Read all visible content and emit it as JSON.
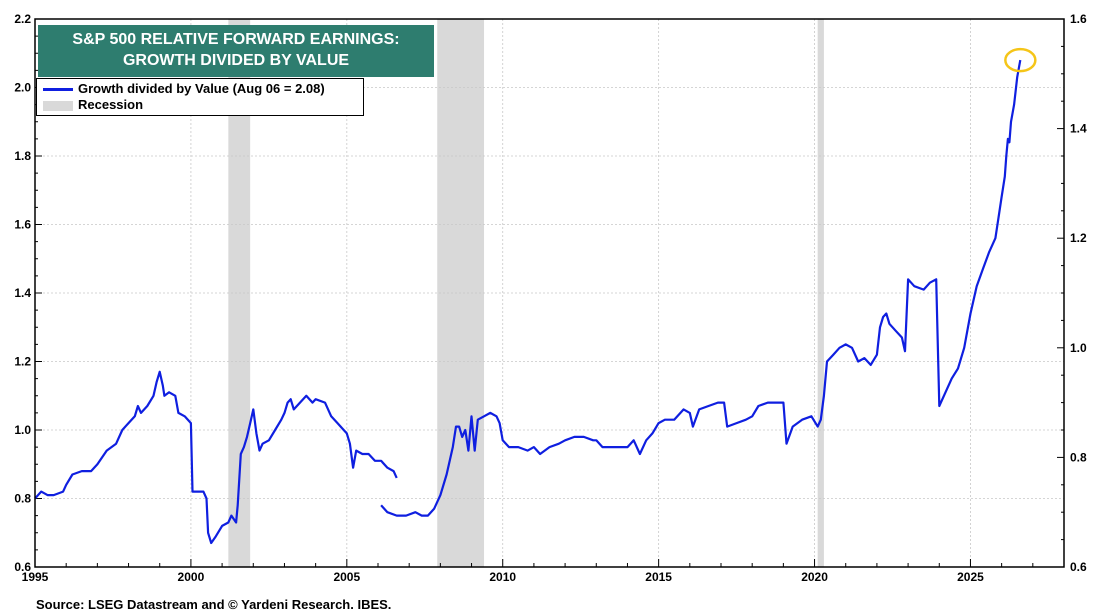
{
  "colors": {
    "series": "#0f1fe0",
    "recession": "#d9d9d9",
    "title_bg": "#2e7d6f",
    "highlight": "#f5c518",
    "grid": "#c8c8c8"
  },
  "chart_data": {
    "type": "line",
    "title": "S&P 500 RELATIVE FORWARD EARNINGS:",
    "subtitle": "GROWTH DIVIDED BY VALUE",
    "xlabel": "",
    "ylabel": "",
    "xlim": [
      1995,
      2028
    ],
    "ylim": [
      0.6,
      2.2
    ],
    "y2lim": [
      0.6,
      1.6
    ],
    "x_ticks": [
      "1995",
      "2000",
      "2005",
      "2010",
      "2015",
      "2020",
      "2025"
    ],
    "y_ticks": [
      "0.6",
      "0.8",
      "1.0",
      "1.2",
      "1.4",
      "1.6",
      "1.8",
      "2.0",
      "2.2"
    ],
    "y2_ticks": [
      "0.6",
      "0.8",
      "1.0",
      "1.2",
      "1.4",
      "1.6"
    ],
    "grid": true,
    "legend_position": "top-left",
    "legend": [
      "Growth divided by Value (Aug 06 = 2.08)",
      "Recession"
    ],
    "recessions": [
      [
        2001.2,
        2001.9
      ],
      [
        2007.9,
        2009.4
      ],
      [
        2020.1,
        2020.3
      ]
    ],
    "series": [
      {
        "name": "Growth divided by Value (Aug 06 = 2.08)",
        "segments": [
          [
            [
              1995.0,
              0.8
            ],
            [
              1995.2,
              0.82
            ],
            [
              1995.4,
              0.81
            ],
            [
              1995.6,
              0.81
            ],
            [
              1995.9,
              0.82
            ],
            [
              1996.0,
              0.84
            ],
            [
              1996.2,
              0.87
            ],
            [
              1996.5,
              0.88
            ],
            [
              1996.8,
              0.88
            ],
            [
              1997.0,
              0.9
            ],
            [
              1997.3,
              0.94
            ],
            [
              1997.6,
              0.96
            ],
            [
              1997.8,
              1.0
            ],
            [
              1998.0,
              1.02
            ],
            [
              1998.2,
              1.04
            ],
            [
              1998.3,
              1.07
            ],
            [
              1998.4,
              1.05
            ],
            [
              1998.6,
              1.07
            ],
            [
              1998.8,
              1.1
            ],
            [
              1998.9,
              1.14
            ],
            [
              1999.0,
              1.17
            ],
            [
              1999.1,
              1.13
            ],
            [
              1999.15,
              1.1
            ],
            [
              1999.3,
              1.11
            ],
            [
              1999.5,
              1.1
            ],
            [
              1999.6,
              1.05
            ],
            [
              1999.8,
              1.04
            ],
            [
              2000.0,
              1.02
            ],
            [
              2000.05,
              0.82
            ],
            [
              2000.2,
              0.82
            ],
            [
              2000.4,
              0.82
            ],
            [
              2000.5,
              0.8
            ],
            [
              2000.55,
              0.7
            ],
            [
              2000.65,
              0.67
            ],
            [
              2000.8,
              0.69
            ],
            [
              2001.0,
              0.72
            ],
            [
              2001.2,
              0.73
            ],
            [
              2001.3,
              0.75
            ],
            [
              2001.45,
              0.73
            ],
            [
              2001.5,
              0.78
            ],
            [
              2001.6,
              0.93
            ],
            [
              2001.7,
              0.95
            ],
            [
              2001.8,
              0.98
            ],
            [
              2001.9,
              1.02
            ],
            [
              2002.0,
              1.06
            ],
            [
              2002.1,
              0.99
            ],
            [
              2002.2,
              0.94
            ],
            [
              2002.3,
              0.96
            ],
            [
              2002.5,
              0.97
            ],
            [
              2002.7,
              1.0
            ],
            [
              2002.9,
              1.03
            ],
            [
              2003.0,
              1.05
            ],
            [
              2003.1,
              1.08
            ],
            [
              2003.2,
              1.09
            ],
            [
              2003.3,
              1.06
            ],
            [
              2003.5,
              1.08
            ],
            [
              2003.7,
              1.1
            ],
            [
              2003.9,
              1.08
            ],
            [
              2004.0,
              1.09
            ],
            [
              2004.3,
              1.08
            ],
            [
              2004.5,
              1.04
            ],
            [
              2004.7,
              1.02
            ],
            [
              2004.9,
              1.0
            ],
            [
              2005.0,
              0.99
            ],
            [
              2005.1,
              0.96
            ],
            [
              2005.2,
              0.89
            ],
            [
              2005.3,
              0.94
            ],
            [
              2005.5,
              0.93
            ],
            [
              2005.7,
              0.93
            ],
            [
              2005.9,
              0.91
            ],
            [
              2006.1,
              0.91
            ],
            [
              2006.3,
              0.89
            ],
            [
              2006.5,
              0.88
            ],
            [
              2006.6,
              0.86
            ]
          ],
          [
            [
              2006.1,
              0.78
            ],
            [
              2006.3,
              0.76
            ],
            [
              2006.6,
              0.75
            ],
            [
              2006.9,
              0.75
            ],
            [
              2007.2,
              0.76
            ],
            [
              2007.4,
              0.75
            ],
            [
              2007.6,
              0.75
            ],
            [
              2007.8,
              0.77
            ],
            [
              2008.0,
              0.81
            ],
            [
              2008.2,
              0.87
            ],
            [
              2008.4,
              0.95
            ],
            [
              2008.5,
              1.01
            ],
            [
              2008.6,
              1.01
            ],
            [
              2008.7,
              0.98
            ],
            [
              2008.8,
              1.0
            ],
            [
              2008.9,
              0.94
            ],
            [
              2009.0,
              1.04
            ],
            [
              2009.1,
              0.94
            ],
            [
              2009.2,
              1.03
            ],
            [
              2009.4,
              1.04
            ],
            [
              2009.6,
              1.05
            ],
            [
              2009.8,
              1.04
            ],
            [
              2009.9,
              1.02
            ],
            [
              2010.0,
              0.97
            ],
            [
              2010.2,
              0.95
            ],
            [
              2010.5,
              0.95
            ],
            [
              2010.8,
              0.94
            ],
            [
              2011.0,
              0.95
            ],
            [
              2011.2,
              0.93
            ],
            [
              2011.5,
              0.95
            ],
            [
              2011.8,
              0.96
            ],
            [
              2012.0,
              0.97
            ],
            [
              2012.3,
              0.98
            ],
            [
              2012.6,
              0.98
            ],
            [
              2012.9,
              0.97
            ],
            [
              2013.0,
              0.97
            ],
            [
              2013.2,
              0.95
            ],
            [
              2013.6,
              0.95
            ],
            [
              2014.0,
              0.95
            ],
            [
              2014.2,
              0.97
            ],
            [
              2014.4,
              0.93
            ],
            [
              2014.6,
              0.97
            ],
            [
              2014.8,
              0.99
            ],
            [
              2015.0,
              1.02
            ],
            [
              2015.2,
              1.03
            ],
            [
              2015.5,
              1.03
            ],
            [
              2015.8,
              1.06
            ],
            [
              2016.0,
              1.05
            ],
            [
              2016.1,
              1.01
            ],
            [
              2016.3,
              1.06
            ],
            [
              2016.6,
              1.07
            ],
            [
              2016.9,
              1.08
            ],
            [
              2017.1,
              1.08
            ],
            [
              2017.2,
              1.01
            ],
            [
              2017.5,
              1.02
            ],
            [
              2017.8,
              1.03
            ],
            [
              2018.0,
              1.04
            ],
            [
              2018.2,
              1.07
            ],
            [
              2018.5,
              1.08
            ],
            [
              2018.8,
              1.08
            ],
            [
              2019.0,
              1.08
            ],
            [
              2019.1,
              0.96
            ],
            [
              2019.3,
              1.01
            ],
            [
              2019.6,
              1.03
            ],
            [
              2019.9,
              1.04
            ],
            [
              2020.1,
              1.01
            ],
            [
              2020.2,
              1.03
            ],
            [
              2020.3,
              1.1
            ],
            [
              2020.4,
              1.2
            ],
            [
              2020.6,
              1.22
            ],
            [
              2020.8,
              1.24
            ],
            [
              2021.0,
              1.25
            ],
            [
              2021.2,
              1.24
            ],
            [
              2021.4,
              1.2
            ],
            [
              2021.6,
              1.21
            ],
            [
              2021.8,
              1.19
            ],
            [
              2022.0,
              1.22
            ],
            [
              2022.1,
              1.3
            ],
            [
              2022.2,
              1.33
            ],
            [
              2022.3,
              1.34
            ],
            [
              2022.4,
              1.31
            ],
            [
              2022.6,
              1.29
            ],
            [
              2022.8,
              1.27
            ],
            [
              2022.9,
              1.23
            ],
            [
              2023.0,
              1.44
            ],
            [
              2023.2,
              1.42
            ],
            [
              2023.5,
              1.41
            ],
            [
              2023.7,
              1.43
            ],
            [
              2023.9,
              1.44
            ],
            [
              2024.0,
              1.07
            ],
            [
              2024.2,
              1.11
            ],
            [
              2024.4,
              1.15
            ],
            [
              2024.6,
              1.18
            ],
            [
              2024.8,
              1.24
            ],
            [
              2025.0,
              1.34
            ],
            [
              2025.2,
              1.42
            ],
            [
              2025.4,
              1.47
            ],
            [
              2025.6,
              1.52
            ],
            [
              2025.8,
              1.56
            ],
            [
              2025.9,
              1.62
            ],
            [
              2026.0,
              1.68
            ],
            [
              2026.1,
              1.74
            ],
            [
              2026.15,
              1.8
            ],
            [
              2026.2,
              1.85
            ],
            [
              2026.25,
              1.84
            ],
            [
              2026.3,
              1.9
            ],
            [
              2026.4,
              1.95
            ],
            [
              2026.5,
              2.03
            ],
            [
              2026.6,
              2.08
            ]
          ]
        ]
      }
    ],
    "highlight": {
      "x": 2026.6,
      "y": 2.08
    }
  },
  "source": "Source: LSEG Datastream and © Yardeni Research. IBES."
}
